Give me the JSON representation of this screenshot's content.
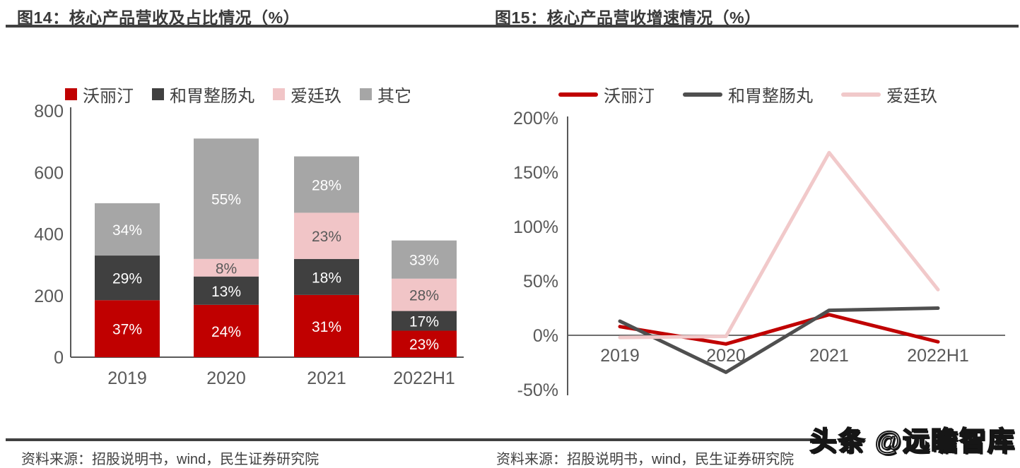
{
  "header": {
    "left_title": "图14：核心产品营收及占比情况（%）",
    "right_title": "图15：核心产品营收增速情况（%）"
  },
  "footer": {
    "left_source": "资料来源：招股说明书，wind，民生证券研究院",
    "right_source": "资料来源：招股说明书，wind，民生证券研究院",
    "watermark": "头条 @远瞻智库"
  },
  "colors": {
    "axis": "#595959",
    "tick_text": "#595959",
    "category_text": "#595959",
    "legend_text": "#404040",
    "rule": "#404040",
    "title_text": "#3A3A3A",
    "source_text": "#404040",
    "brand_red": "#C00000",
    "dark_gray": "#404040",
    "pink": "#F1C5C7",
    "light_gray": "#A6A6A6"
  },
  "chart_data": [
    {
      "type": "bar",
      "stacked": true,
      "title": "图14：核心产品营收及占比情况（%）",
      "categories": [
        "2019",
        "2020",
        "2021",
        "2022H1"
      ],
      "ylim": [
        0,
        800
      ],
      "yticks": [
        0,
        200,
        400,
        600,
        800
      ],
      "grid": false,
      "legend_position": "top",
      "totals": [
        500,
        710,
        652,
        379
      ],
      "series": [
        {
          "name": "沃丽汀",
          "color": "#C00000",
          "values": [
            185,
            170,
            202,
            86
          ],
          "pct_labels": [
            "37%",
            "24%",
            "31%",
            "23%"
          ],
          "label_color": "#FFFFFF"
        },
        {
          "name": "和胃整肠丸",
          "color": "#404040",
          "values": [
            145,
            92,
            117,
            64
          ],
          "pct_labels": [
            "29%",
            "13%",
            "18%",
            "17%"
          ],
          "label_color": "#FFFFFF"
        },
        {
          "name": "爱廷玖",
          "color": "#F1C5C7",
          "values": [
            0,
            57,
            150,
            105
          ],
          "pct_labels": [
            "",
            "8%",
            "23%",
            "28%"
          ],
          "label_color": "#595959"
        },
        {
          "name": "其它",
          "color": "#A6A6A6",
          "values": [
            170,
            391,
            183,
            124
          ],
          "pct_labels": [
            "34%",
            "55%",
            "28%",
            "33%"
          ],
          "label_color": "#FFFFFF"
        }
      ]
    },
    {
      "type": "line",
      "title": "图15：核心产品营收增速情况（%）",
      "categories": [
        "2019",
        "2020",
        "2021",
        "2022H1"
      ],
      "ylim": [
        -50,
        200
      ],
      "yticks": [
        -50,
        0,
        50,
        100,
        150,
        200
      ],
      "ytick_suffix": "%",
      "grid": false,
      "legend_position": "top",
      "series": [
        {
          "name": "沃丽汀",
          "color": "#C00000",
          "values": [
            8,
            -8,
            19,
            -6
          ]
        },
        {
          "name": "和胃整肠丸",
          "color": "#4F4F4F",
          "values": [
            13,
            -34,
            23,
            25
          ]
        },
        {
          "name": "爱廷玖",
          "color": "#F1C9CA",
          "values": [
            -2,
            -1,
            168,
            42
          ]
        }
      ]
    }
  ]
}
